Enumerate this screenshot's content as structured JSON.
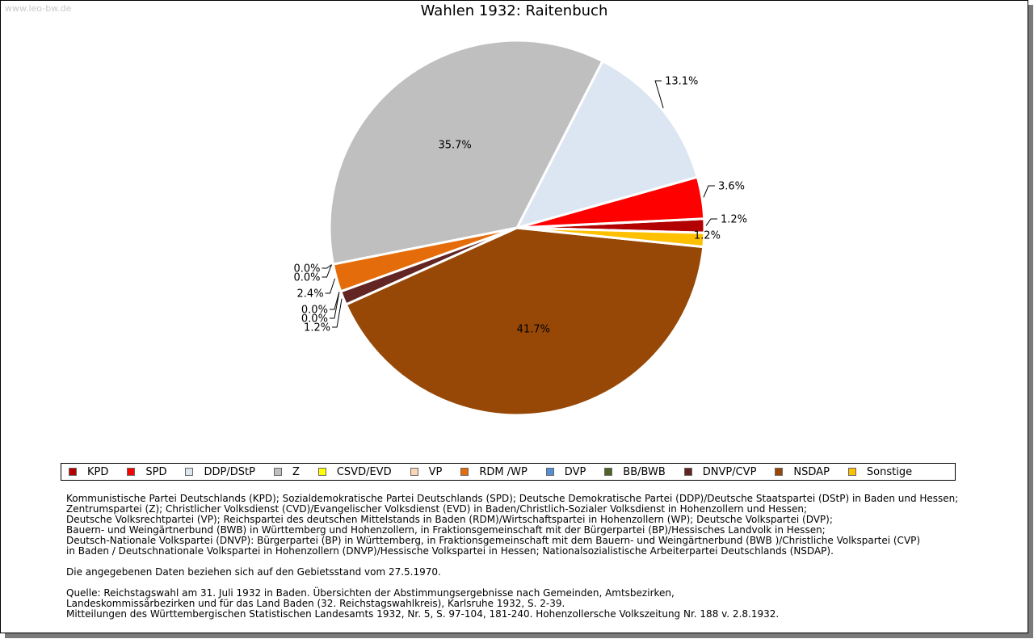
{
  "watermark": "www.leo-bw.de",
  "chart_data": {
    "type": "pie",
    "title": "Wahlen 1932: Raitenbuch",
    "slices": [
      {
        "name": "KPD",
        "value": 1.2,
        "label": "1.2%",
        "color": "#b30000"
      },
      {
        "name": "SPD",
        "value": 3.6,
        "label": "3.6%",
        "color": "#ff0000"
      },
      {
        "name": "DDP/DStP",
        "value": 13.1,
        "label": "13.1%",
        "color": "#dce6f2"
      },
      {
        "name": "Z",
        "value": 35.7,
        "label": "35.7%",
        "color": "#bfbfbf"
      },
      {
        "name": "CSVD/EVD",
        "value": 0.0,
        "label": "0.0%",
        "color": "#ffff00"
      },
      {
        "name": "VP",
        "value": 0.0,
        "label": "0.0%",
        "color": "#fcd5b4"
      },
      {
        "name": "RDM /WP",
        "value": 2.4,
        "label": "2.4%",
        "color": "#e46c0a"
      },
      {
        "name": "DVP",
        "value": 0.0,
        "label": "0.0%",
        "color": "#558ed5"
      },
      {
        "name": "BB/BWB",
        "value": 0.0,
        "label": "0.0%",
        "color": "#4f6228"
      },
      {
        "name": "DNVP/CVP",
        "value": 1.2,
        "label": "1.2%",
        "color": "#632523"
      },
      {
        "name": "NSDAP",
        "value": 41.7,
        "label": "41.7%",
        "color": "#974806"
      },
      {
        "name": "Sonstige",
        "value": 1.2,
        "label": "1.2%",
        "color": "#ffc000"
      }
    ],
    "legend_position": "bottom"
  },
  "notes": {
    "parties": [
      "Kommunistische Partei Deutschlands (KPD); Sozialdemokratische Partei Deutschlands (SPD); Deutsche Demokratische Partei (DDP)/Deutsche Staatspartei (DStP) in Baden und Hessen;",
      "Zentrumspartei (Z); Christlicher Volksdienst (CVD)/Evangelischer Volksdienst (EVD) in Baden/Christlich-Sozialer Volksdienst in Hohenzollern und Hessen;",
      "Deutsche Volksrechtpartei (VP); Reichspartei des deutschen Mittelstands in Baden (RDM)/Wirtschaftspartei in Hohenzollern (WP); Deutsche Volkspartei (DVP);",
      "Bauern- und Weingärtnerbund (BWB) in Württemberg und Hohenzollern, in Fraktionsgemeinschaft mit der Bürgerpartei (BP)/Hessisches Landvolk in Hessen;",
      "Deutsch-Nationale Volkspartei (DNVP): Bürgerpartei (BP) in Württemberg, in Fraktionsgemeinschaft mit dem Bauern- und Weingärtnerbund (BWB )/Christliche Volkspartei (CVP)",
      "in Baden / Deutschnationale Volkspartei in Hohenzollern (DNVP)/Hessische Volkspartei in Hessen; Nationalsozialistische Arbeiterpartei Deutschlands (NSDAP)."
    ],
    "gebietsstand": "Die angegebenen Daten beziehen sich auf den Gebietsstand vom 27.5.1970.",
    "source": [
      "Quelle: Reichstagswahl am 31. Juli 1932 in Baden. Übersichten der Abstimmungsergebnisse nach Gemeinden, Amtsbezirken,",
      "Landeskommissärbezirken und für das Land Baden (32. Reichstagswahlkreis), Karlsruhe 1932, S. 2-39.",
      "Mitteilungen des Württembergischen Statistischen Landesamts 1932, Nr. 5, S. 97-104, 181-240. Hohenzollersche Volkszeitung Nr. 188 v. 2.8.1932."
    ]
  }
}
